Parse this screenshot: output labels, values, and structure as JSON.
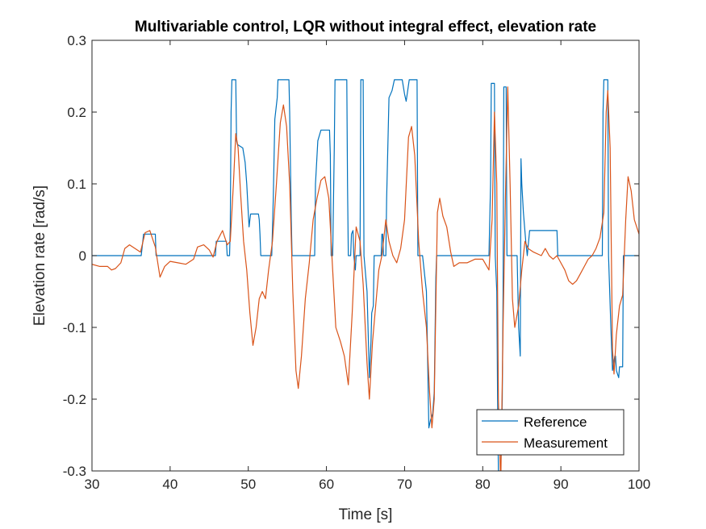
{
  "chart_data": {
    "type": "line",
    "title": "Multivariable control, LQR without integral effect, elevation rate",
    "xlabel": "Time [s]",
    "ylabel": "Elevation rate [rad/s]",
    "xlim": [
      30,
      100
    ],
    "ylim": [
      -0.3,
      0.3
    ],
    "xticks": [
      30,
      40,
      50,
      60,
      70,
      80,
      90,
      100
    ],
    "yticks": [
      -0.3,
      -0.2,
      -0.1,
      0,
      0.1,
      0.2,
      0.3
    ],
    "xtick_labels": [
      "30",
      "40",
      "50",
      "60",
      "70",
      "80",
      "90",
      "100"
    ],
    "ytick_labels": [
      "-0.3",
      "-0.2",
      "-0.1",
      "0",
      "0.1",
      "0.2",
      "0.3"
    ],
    "grid": false,
    "legend_position": "bottom-right",
    "series": [
      {
        "name": "Reference",
        "color": "#0072BD",
        "points": [
          [
            30.0,
            0.0
          ],
          [
            36.3,
            0.0
          ],
          [
            36.5,
            0.02
          ],
          [
            36.6,
            0.03
          ],
          [
            38.1,
            0.03
          ],
          [
            38.2,
            0.0
          ],
          [
            45.8,
            0.0
          ],
          [
            45.9,
            0.02
          ],
          [
            47.2,
            0.02
          ],
          [
            47.3,
            0.0
          ],
          [
            47.6,
            0.0
          ],
          [
            47.7,
            0.04
          ],
          [
            47.8,
            0.2
          ],
          [
            47.9,
            0.245
          ],
          [
            48.4,
            0.245
          ],
          [
            48.5,
            0.16
          ],
          [
            48.6,
            0.155
          ],
          [
            49.3,
            0.15
          ],
          [
            49.6,
            0.13
          ],
          [
            49.8,
            0.1
          ],
          [
            50.0,
            0.06
          ],
          [
            50.1,
            0.04
          ],
          [
            50.2,
            0.05
          ],
          [
            50.3,
            0.058
          ],
          [
            51.3,
            0.058
          ],
          [
            51.4,
            0.05
          ],
          [
            51.5,
            0.03
          ],
          [
            51.6,
            0.0
          ],
          [
            53.0,
            0.0
          ],
          [
            53.2,
            0.08
          ],
          [
            53.4,
            0.19
          ],
          [
            53.7,
            0.22
          ],
          [
            53.8,
            0.245
          ],
          [
            55.2,
            0.245
          ],
          [
            55.3,
            0.2
          ],
          [
            55.5,
            0.05
          ],
          [
            55.6,
            0.0
          ],
          [
            58.5,
            0.0
          ],
          [
            58.6,
            0.1
          ],
          [
            58.9,
            0.16
          ],
          [
            59.3,
            0.175
          ],
          [
            60.4,
            0.175
          ],
          [
            60.5,
            0.14
          ],
          [
            60.6,
            0.0
          ],
          [
            60.8,
            0.0
          ],
          [
            61.0,
            0.15
          ],
          [
            61.1,
            0.245
          ],
          [
            62.6,
            0.245
          ],
          [
            62.7,
            0.1
          ],
          [
            62.8,
            0.0
          ],
          [
            63.1,
            0.0
          ],
          [
            63.2,
            0.03
          ],
          [
            63.4,
            0.035
          ],
          [
            63.5,
            0.0
          ],
          [
            63.7,
            -0.02
          ],
          [
            63.8,
            0.0
          ],
          [
            64.3,
            0.0
          ],
          [
            64.4,
            0.245
          ],
          [
            64.7,
            0.245
          ],
          [
            64.8,
            0.0
          ],
          [
            65.2,
            -0.05
          ],
          [
            65.5,
            -0.17
          ],
          [
            65.7,
            -0.12
          ],
          [
            65.8,
            -0.08
          ],
          [
            66.0,
            -0.07
          ],
          [
            66.1,
            0.0
          ],
          [
            67.0,
            0.0
          ],
          [
            67.1,
            0.03
          ],
          [
            67.2,
            0.03
          ],
          [
            67.3,
            0.0
          ],
          [
            67.6,
            0.0
          ],
          [
            67.7,
            0.08
          ],
          [
            68.0,
            0.22
          ],
          [
            68.4,
            0.23
          ],
          [
            68.7,
            0.245
          ],
          [
            69.7,
            0.245
          ],
          [
            70.0,
            0.225
          ],
          [
            70.2,
            0.215
          ],
          [
            70.4,
            0.23
          ],
          [
            70.6,
            0.245
          ],
          [
            71.6,
            0.245
          ],
          [
            71.7,
            0.0
          ],
          [
            72.3,
            0.0
          ],
          [
            72.8,
            -0.05
          ],
          [
            73.1,
            -0.24
          ],
          [
            73.3,
            -0.23
          ],
          [
            73.6,
            -0.22
          ],
          [
            73.8,
            -0.19
          ],
          [
            74.0,
            -0.03
          ],
          [
            74.1,
            0.0
          ],
          [
            80.8,
            0.0
          ],
          [
            81.0,
            0.1
          ],
          [
            81.1,
            0.24
          ],
          [
            81.5,
            0.24
          ],
          [
            81.6,
            0.0
          ],
          [
            81.8,
            -0.05
          ],
          [
            81.9,
            -0.2
          ],
          [
            82.0,
            -0.3
          ],
          [
            82.3,
            -0.3
          ],
          [
            82.5,
            -0.2
          ],
          [
            82.6,
            -0.05
          ],
          [
            82.7,
            0.235
          ],
          [
            83.0,
            0.235
          ],
          [
            83.1,
            0.0
          ],
          [
            84.4,
            0.0
          ],
          [
            84.6,
            -0.1
          ],
          [
            84.8,
            -0.14
          ],
          [
            84.9,
            0.135
          ],
          [
            85.0,
            0.1
          ],
          [
            85.2,
            0.06
          ],
          [
            85.5,
            0.02
          ],
          [
            85.7,
            0.0
          ],
          [
            86.0,
            0.035
          ],
          [
            89.5,
            0.035
          ],
          [
            89.6,
            0.0
          ],
          [
            95.3,
            0.0
          ],
          [
            95.4,
            0.2
          ],
          [
            95.5,
            0.245
          ],
          [
            96.0,
            0.245
          ],
          [
            96.1,
            0.0
          ],
          [
            96.4,
            -0.1
          ],
          [
            96.6,
            -0.16
          ],
          [
            96.9,
            -0.14
          ],
          [
            97.0,
            -0.14
          ],
          [
            97.1,
            -0.16
          ],
          [
            97.4,
            -0.17
          ],
          [
            97.5,
            -0.155
          ],
          [
            97.9,
            -0.155
          ],
          [
            98.0,
            0.0
          ],
          [
            100.0,
            0.0
          ]
        ]
      },
      {
        "name": "Measurement",
        "color": "#D95319",
        "points": [
          [
            30.0,
            -0.012
          ],
          [
            31.0,
            -0.015
          ],
          [
            32.0,
            -0.015
          ],
          [
            32.5,
            -0.02
          ],
          [
            33.0,
            -0.018
          ],
          [
            33.7,
            -0.01
          ],
          [
            34.2,
            0.01
          ],
          [
            34.8,
            0.015
          ],
          [
            35.5,
            0.01
          ],
          [
            36.2,
            0.005
          ],
          [
            36.8,
            0.032
          ],
          [
            37.4,
            0.035
          ],
          [
            38.1,
            0.012
          ],
          [
            38.7,
            -0.03
          ],
          [
            39.3,
            -0.015
          ],
          [
            40.0,
            -0.008
          ],
          [
            41.0,
            -0.01
          ],
          [
            42.0,
            -0.012
          ],
          [
            43.0,
            -0.005
          ],
          [
            43.5,
            0.012
          ],
          [
            44.3,
            0.015
          ],
          [
            45.0,
            0.008
          ],
          [
            45.5,
            -0.002
          ],
          [
            46.0,
            0.02
          ],
          [
            46.7,
            0.035
          ],
          [
            47.3,
            0.015
          ],
          [
            47.7,
            0.02
          ],
          [
            48.1,
            0.1
          ],
          [
            48.4,
            0.17
          ],
          [
            48.7,
            0.15
          ],
          [
            49.0,
            0.09
          ],
          [
            49.4,
            0.02
          ],
          [
            49.8,
            -0.02
          ],
          [
            50.2,
            -0.08
          ],
          [
            50.6,
            -0.125
          ],
          [
            51.0,
            -0.1
          ],
          [
            51.4,
            -0.06
          ],
          [
            51.8,
            -0.05
          ],
          [
            52.2,
            -0.06
          ],
          [
            52.6,
            -0.02
          ],
          [
            53.1,
            0.02
          ],
          [
            53.6,
            0.1
          ],
          [
            54.1,
            0.185
          ],
          [
            54.5,
            0.21
          ],
          [
            54.9,
            0.18
          ],
          [
            55.3,
            0.1
          ],
          [
            55.7,
            -0.05
          ],
          [
            56.1,
            -0.16
          ],
          [
            56.4,
            -0.185
          ],
          [
            56.8,
            -0.14
          ],
          [
            57.3,
            -0.06
          ],
          [
            57.8,
            -0.01
          ],
          [
            58.3,
            0.05
          ],
          [
            58.8,
            0.08
          ],
          [
            59.3,
            0.105
          ],
          [
            59.8,
            0.11
          ],
          [
            60.3,
            0.08
          ],
          [
            60.8,
            -0.02
          ],
          [
            61.2,
            -0.1
          ],
          [
            61.8,
            -0.12
          ],
          [
            62.3,
            -0.14
          ],
          [
            62.8,
            -0.18
          ],
          [
            63.3,
            -0.08
          ],
          [
            63.8,
            0.04
          ],
          [
            64.3,
            0.02
          ],
          [
            64.7,
            -0.04
          ],
          [
            65.2,
            -0.15
          ],
          [
            65.5,
            -0.2
          ],
          [
            65.9,
            -0.12
          ],
          [
            66.3,
            -0.07
          ],
          [
            66.7,
            -0.02
          ],
          [
            67.1,
            0.0
          ],
          [
            67.6,
            0.05
          ],
          [
            68.0,
            0.02
          ],
          [
            68.5,
            0.0
          ],
          [
            69.0,
            -0.01
          ],
          [
            69.5,
            0.01
          ],
          [
            70.0,
            0.05
          ],
          [
            70.5,
            0.165
          ],
          [
            70.9,
            0.18
          ],
          [
            71.3,
            0.14
          ],
          [
            71.8,
            0.02
          ],
          [
            72.3,
            -0.05
          ],
          [
            72.8,
            -0.1
          ],
          [
            73.2,
            -0.19
          ],
          [
            73.5,
            -0.24
          ],
          [
            73.8,
            -0.2
          ],
          [
            74.2,
            0.06
          ],
          [
            74.5,
            0.08
          ],
          [
            74.9,
            0.055
          ],
          [
            75.4,
            0.04
          ],
          [
            75.9,
            0.005
          ],
          [
            76.3,
            -0.015
          ],
          [
            77.0,
            -0.01
          ],
          [
            78.0,
            -0.01
          ],
          [
            79.0,
            -0.005
          ],
          [
            80.0,
            -0.005
          ],
          [
            80.8,
            -0.02
          ],
          [
            81.2,
            0.05
          ],
          [
            81.5,
            0.2
          ],
          [
            81.8,
            0.1
          ],
          [
            82.0,
            -0.2
          ],
          [
            82.3,
            -0.32
          ],
          [
            82.6,
            -0.1
          ],
          [
            82.9,
            0.08
          ],
          [
            83.2,
            0.235
          ],
          [
            83.5,
            0.1
          ],
          [
            83.8,
            -0.06
          ],
          [
            84.1,
            -0.1
          ],
          [
            84.6,
            -0.07
          ],
          [
            85.0,
            -0.02
          ],
          [
            85.4,
            0.02
          ],
          [
            85.8,
            0.01
          ],
          [
            86.5,
            0.005
          ],
          [
            87.5,
            0.0
          ],
          [
            88.0,
            0.01
          ],
          [
            88.5,
            0.0
          ],
          [
            89.0,
            -0.005
          ],
          [
            89.5,
            0.0
          ],
          [
            90.0,
            -0.01
          ],
          [
            90.5,
            -0.02
          ],
          [
            91.0,
            -0.035
          ],
          [
            91.5,
            -0.04
          ],
          [
            92.0,
            -0.035
          ],
          [
            92.5,
            -0.025
          ],
          [
            93.0,
            -0.015
          ],
          [
            93.5,
            -0.005
          ],
          [
            94.0,
            0.0
          ],
          [
            94.5,
            0.01
          ],
          [
            95.0,
            0.025
          ],
          [
            95.5,
            0.06
          ],
          [
            95.8,
            0.2
          ],
          [
            96.0,
            0.23
          ],
          [
            96.3,
            0.15
          ],
          [
            96.6,
            -0.13
          ],
          [
            96.8,
            -0.165
          ],
          [
            97.1,
            -0.11
          ],
          [
            97.5,
            -0.07
          ],
          [
            97.9,
            -0.055
          ],
          [
            98.3,
            0.05
          ],
          [
            98.6,
            0.11
          ],
          [
            99.0,
            0.09
          ],
          [
            99.4,
            0.05
          ],
          [
            100.0,
            0.03
          ]
        ]
      }
    ]
  }
}
